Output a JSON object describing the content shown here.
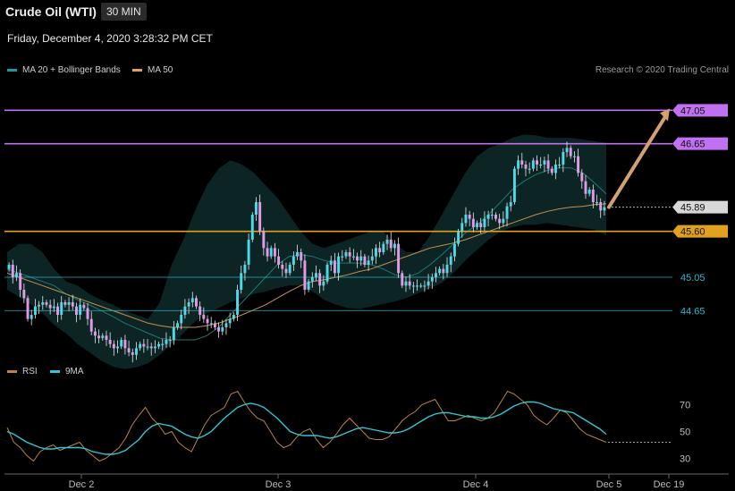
{
  "header": {
    "title": "Crude Oil (WTI)",
    "interval": "30 MIN",
    "datetime": "Friday, December 4, 2020 3:28:32 PM CET",
    "credit": "Research © 2020 Trading Central"
  },
  "price_legend": [
    {
      "label": "MA 20 + Bollinger Bands",
      "color": "#1f9a9a"
    },
    {
      "label": "MA 50",
      "color": "#e0a060"
    }
  ],
  "rsi_legend": [
    {
      "label": "RSI",
      "color": "#b8863a"
    },
    {
      "label": "9MA",
      "color": "#2ec8d8"
    }
  ],
  "chart_data": [
    {
      "type": "candlestick",
      "x_ticks": [
        "Dec 2",
        "Dec 3",
        "Dec 4",
        "Dec 5",
        "Dec 19"
      ],
      "ylim": [
        44.3,
        47.3
      ],
      "last_price": {
        "value": 45.89,
        "label": "45.89",
        "color": "#d8d8d8"
      },
      "levels": [
        {
          "value": 47.05,
          "label": "47.05",
          "kind": "resistance",
          "color": "#c070f0"
        },
        {
          "value": 46.65,
          "label": "46.65",
          "kind": "resistance",
          "color": "#c070f0"
        },
        {
          "value": 45.6,
          "label": "45.60",
          "kind": "pivot",
          "color": "#e0a020"
        },
        {
          "value": 45.05,
          "label": "45.05",
          "kind": "support",
          "color": "#2ab8c8"
        },
        {
          "value": 44.65,
          "label": "44.65",
          "kind": "support",
          "color": "#2ab8c8"
        }
      ],
      "projection": {
        "from": 45.89,
        "to": 47.05,
        "color": "#d4a070"
      },
      "close": [
        45.2,
        45.05,
        45.1,
        44.9,
        44.8,
        44.55,
        44.6,
        44.7,
        44.72,
        44.75,
        44.72,
        44.68,
        44.7,
        44.6,
        44.75,
        44.72,
        44.75,
        44.7,
        44.6,
        44.72,
        44.68,
        44.55,
        44.4,
        44.35,
        44.32,
        44.35,
        44.3,
        44.25,
        44.2,
        44.22,
        44.3,
        44.2,
        44.15,
        44.12,
        44.2,
        44.25,
        44.22,
        44.22,
        44.2,
        44.22,
        44.25,
        44.25,
        44.3,
        44.3,
        44.45,
        44.5,
        44.6,
        44.7,
        44.75,
        44.8,
        44.7,
        44.6,
        44.55,
        44.5,
        44.5,
        44.45,
        44.4,
        44.45,
        44.5,
        44.55,
        44.6,
        44.9,
        45.1,
        45.2,
        45.5,
        45.8,
        45.95,
        45.6,
        45.4,
        45.3,
        45.4,
        45.3,
        45.2,
        45.15,
        45.1,
        45.2,
        45.3,
        45.35,
        45.25,
        44.9,
        45.0,
        45.05,
        45.1,
        44.95,
        45.0,
        45.2,
        45.25,
        45.1,
        45.3,
        45.3,
        45.35,
        45.3,
        45.3,
        45.25,
        45.3,
        45.2,
        45.25,
        45.3,
        45.4,
        45.35,
        45.45,
        45.5,
        45.4,
        45.45,
        45.1,
        44.95,
        45.0,
        44.95,
        44.95,
        44.95,
        44.95,
        44.95,
        45.0,
        45.05,
        45.1,
        45.15,
        45.1,
        45.2,
        45.3,
        45.45,
        45.6,
        45.7,
        45.8,
        45.75,
        45.65,
        45.7,
        45.65,
        45.75,
        45.8,
        45.8,
        45.75,
        45.7,
        45.75,
        45.9,
        45.95,
        46.35,
        46.45,
        46.4,
        46.35,
        46.35,
        46.45,
        46.4,
        46.4,
        46.45,
        46.35,
        46.3,
        46.4,
        46.4,
        46.55,
        46.6,
        46.5,
        46.5,
        46.3,
        46.2,
        46.05,
        46.1,
        45.95,
        45.95,
        45.85,
        45.89
      ],
      "ma20_bb": {
        "mid": [
          45.15,
          45.1,
          45.05,
          45.0,
          44.95,
          44.85,
          44.78,
          44.72,
          44.65,
          44.58,
          44.5,
          44.44,
          44.38,
          44.32,
          44.3,
          44.3,
          44.3,
          44.35,
          44.45,
          44.6,
          44.75,
          44.9,
          45.05,
          45.2,
          45.3,
          45.32,
          45.3,
          45.25,
          45.22,
          45.22,
          45.22,
          45.2,
          45.15,
          45.08,
          45.05,
          45.1,
          45.2,
          45.32,
          45.45,
          45.58,
          45.68,
          45.8,
          45.95,
          46.1,
          46.2,
          46.28,
          46.33,
          46.36,
          46.36,
          46.3,
          46.18,
          46.05
        ],
        "upper": [
          45.35,
          45.45,
          45.45,
          45.35,
          45.15,
          45.0,
          44.95,
          44.85,
          44.78,
          44.72,
          44.65,
          44.6,
          44.55,
          44.75,
          45.2,
          45.5,
          45.85,
          46.15,
          46.35,
          46.45,
          46.4,
          46.3,
          46.15,
          46.0,
          45.8,
          45.6,
          45.45,
          45.4,
          45.45,
          45.5,
          45.55,
          45.6,
          45.6,
          45.45,
          45.35,
          45.35,
          45.55,
          45.8,
          46.05,
          46.3,
          46.5,
          46.6,
          46.65,
          46.72,
          46.76,
          46.75,
          46.72,
          46.72,
          46.72,
          46.7,
          46.68,
          46.66
        ],
        "lower": [
          44.9,
          44.82,
          44.72,
          44.62,
          44.48,
          44.38,
          44.25,
          44.15,
          44.05,
          43.98,
          43.95,
          43.97,
          44.02,
          44.12,
          44.25,
          44.38,
          44.52,
          44.62,
          44.68,
          44.75,
          44.8,
          44.85,
          44.88,
          44.92,
          44.95,
          44.95,
          44.88,
          44.78,
          44.72,
          44.68,
          44.67,
          44.7,
          44.73,
          44.76,
          44.8,
          44.86,
          44.92,
          44.98,
          45.1,
          45.25,
          45.38,
          45.5,
          45.6,
          45.65,
          45.68,
          45.68,
          45.7,
          45.68,
          45.66,
          45.64,
          45.62,
          45.55
        ]
      },
      "ma50": [
        45.1,
        45.05,
        45.0,
        44.95,
        44.9,
        44.85,
        44.8,
        44.75,
        44.7,
        44.65,
        44.6,
        44.55,
        44.5,
        44.47,
        44.45,
        44.45,
        44.45,
        44.47,
        44.5,
        44.55,
        44.6,
        44.66,
        44.72,
        44.8,
        44.88,
        44.95,
        45.0,
        45.02,
        45.05,
        45.08,
        45.12,
        45.15,
        45.2,
        45.25,
        45.3,
        45.35,
        45.4,
        45.43,
        45.46,
        45.5,
        45.55,
        45.6,
        45.65,
        45.7,
        45.75,
        45.8,
        45.84,
        45.87,
        45.89,
        45.9,
        45.92,
        45.93
      ]
    },
    {
      "type": "line",
      "ylim": [
        25,
        85
      ],
      "y_ticks": [
        30,
        50,
        70
      ],
      "level_line": 42,
      "series": [
        {
          "name": "RSI",
          "color": "#b8863a",
          "values": [
            53,
            42,
            38,
            32,
            28,
            35,
            38,
            40,
            36,
            38,
            40,
            42,
            36,
            32,
            28,
            30,
            34,
            38,
            45,
            55,
            62,
            68,
            60,
            55,
            48,
            50,
            42,
            38,
            35,
            45,
            55,
            62,
            65,
            68,
            78,
            80,
            72,
            65,
            60,
            58,
            50,
            42,
            38,
            40,
            46,
            50,
            52,
            44,
            38,
            42,
            48,
            55,
            60,
            55,
            50,
            45,
            44,
            44,
            46,
            52,
            58,
            62,
            65,
            70,
            72,
            74,
            66,
            58,
            58,
            60,
            62,
            60,
            58,
            60,
            64,
            72,
            80,
            78,
            74,
            70,
            62,
            58,
            55,
            60,
            66,
            64,
            58,
            52,
            48,
            46,
            44,
            42
          ]
        },
        {
          "name": "9MA",
          "color": "#2ec8d8",
          "values": [
            50,
            48,
            45,
            42,
            40,
            38,
            37,
            37,
            38,
            38,
            38,
            38,
            37,
            35,
            34,
            33,
            33,
            34,
            36,
            40,
            44,
            50,
            54,
            56,
            55,
            54,
            51,
            48,
            46,
            45,
            47,
            50,
            55,
            60,
            64,
            68,
            70,
            71,
            70,
            68,
            64,
            60,
            55,
            50,
            48,
            47,
            47,
            47,
            46,
            45,
            46,
            48,
            50,
            52,
            53,
            52,
            51,
            50,
            49,
            49,
            50,
            52,
            55,
            58,
            61,
            63,
            64,
            64,
            63,
            62,
            61,
            61,
            60,
            60,
            61,
            63,
            66,
            69,
            71,
            72,
            72,
            71,
            69,
            67,
            66,
            65,
            64,
            61,
            58,
            55,
            52,
            48
          ]
        }
      ]
    }
  ]
}
